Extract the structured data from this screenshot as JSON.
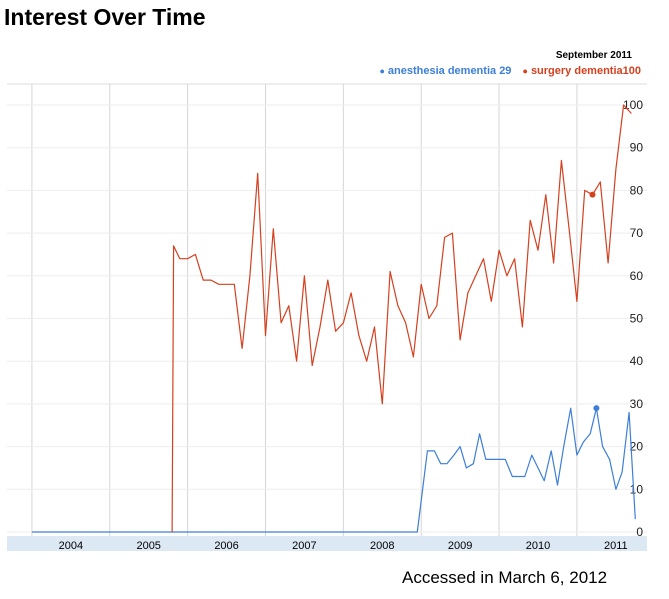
{
  "title": "Interest Over Time",
  "footer": "Accessed in March 6,  2012",
  "chart_data": {
    "type": "line",
    "title": "Interest Over Time",
    "highlight_label": "September 2011",
    "ylim": [
      0,
      100
    ],
    "yticks": [
      0,
      10,
      20,
      30,
      40,
      50,
      60,
      70,
      80,
      90,
      100
    ],
    "xlabels": [
      "2004",
      "2005",
      "2006",
      "2007",
      "2008",
      "2009",
      "2010",
      "2011"
    ],
    "grid": true,
    "legend_position": "top-right",
    "series": [
      {
        "name": "anesthesia dementia",
        "legend_value": "29",
        "color": "#3d7fd8",
        "x": [
          2004.0,
          2008.95,
          2009.08,
          2009.17,
          2009.25,
          2009.33,
          2009.42,
          2009.5,
          2009.58,
          2009.67,
          2009.75,
          2009.83,
          2009.92,
          2010.0,
          2010.08,
          2010.17,
          2010.25,
          2010.33,
          2010.42,
          2010.5,
          2010.58,
          2010.67,
          2010.75,
          2010.83,
          2010.92,
          2011.0,
          2011.08,
          2011.17,
          2011.25,
          2011.33,
          2011.42,
          2011.5,
          2011.58,
          2011.67,
          2011.75
        ],
        "y": [
          0,
          0,
          19,
          19,
          16,
          16,
          18,
          20,
          15,
          16,
          23,
          17,
          17,
          17,
          17,
          13,
          13,
          13,
          18,
          15,
          12,
          19,
          11,
          20,
          29,
          18,
          21,
          23,
          29,
          20,
          17,
          10,
          14,
          28,
          3
        ]
      },
      {
        "name": "surgery dementia",
        "legend_value": "100",
        "color": "#d5401f",
        "x": [
          2005.8,
          2005.82,
          2005.9,
          2006.0,
          2006.1,
          2006.2,
          2006.3,
          2006.4,
          2006.5,
          2006.6,
          2006.7,
          2006.8,
          2006.9,
          2007.0,
          2007.1,
          2007.2,
          2007.3,
          2007.4,
          2007.5,
          2007.6,
          2007.7,
          2007.8,
          2007.9,
          2008.0,
          2008.1,
          2008.2,
          2008.3,
          2008.4,
          2008.5,
          2008.6,
          2008.7,
          2008.8,
          2008.9,
          2009.0,
          2009.1,
          2009.2,
          2009.3,
          2009.4,
          2009.5,
          2009.6,
          2009.7,
          2009.8,
          2009.9,
          2010.0,
          2010.1,
          2010.2,
          2010.3,
          2010.4,
          2010.5,
          2010.6,
          2010.7,
          2010.8,
          2010.9,
          2011.0,
          2011.1,
          2011.2,
          2011.3,
          2011.4,
          2011.5,
          2011.6,
          2011.7
        ],
        "y": [
          0,
          67,
          64,
          64,
          65,
          59,
          59,
          58,
          58,
          58,
          43,
          60,
          84,
          46,
          71,
          49,
          53,
          40,
          60,
          39,
          48,
          59,
          47,
          49,
          56,
          46,
          40,
          48,
          30,
          61,
          53,
          49,
          41,
          58,
          50,
          53,
          69,
          70,
          45,
          56,
          60,
          64,
          54,
          66,
          60,
          64,
          48,
          73,
          66,
          79,
          63,
          87,
          71,
          54,
          80,
          79,
          82,
          63,
          85,
          100,
          98
        ]
      }
    ]
  }
}
